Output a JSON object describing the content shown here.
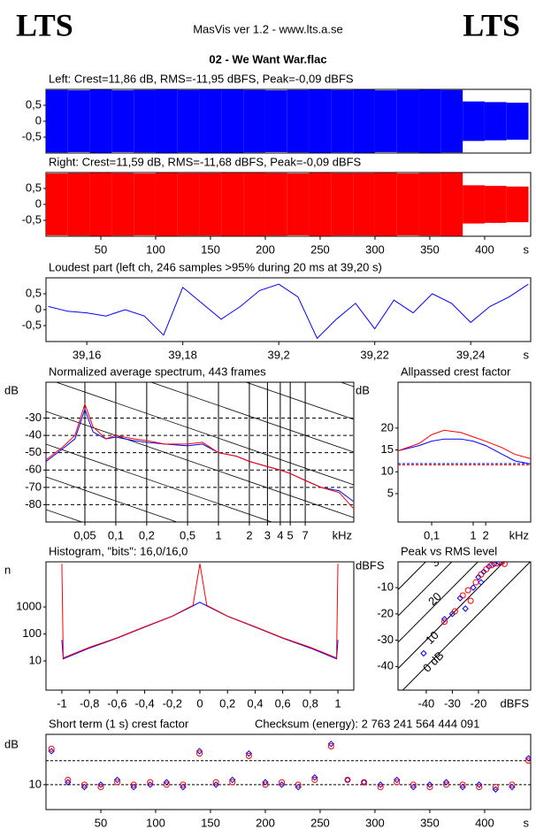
{
  "header": {
    "left_logo": "LTS",
    "app": "MasVis ver 1.2 - www.lts.a.se",
    "right_logo": "LTS",
    "file": "02 - We Want War.flac"
  },
  "chart_data": [
    {
      "type": "envelope",
      "title": "Left: Crest=11,86 dB, RMS=-11,95 dBFS, Peak=-0,09 dBFS",
      "x": [
        10,
        30,
        50,
        70,
        90,
        110,
        130,
        150,
        170,
        190,
        210,
        230,
        250,
        270,
        290,
        310,
        330,
        350,
        370,
        390,
        410,
        430
      ],
      "series": [
        {
          "color": "#0000ff",
          "values": [
            0.98,
            0.97,
            0.99,
            0.97,
            0.98,
            0.99,
            0.98,
            0.99,
            0.99,
            0.98,
            0.97,
            0.98,
            0.99,
            0.98,
            0.99,
            0.97,
            0.98,
            0.99,
            0.98,
            0.62,
            0.6,
            0.58
          ]
        }
      ],
      "xlim": [
        0,
        442
      ],
      "ylim": [
        -1,
        1
      ],
      "yticks": [
        {
          "value": 0.5,
          "label": "0,5"
        },
        0,
        {
          "value": -0.5,
          "label": "-0,5"
        }
      ]
    },
    {
      "type": "envelope",
      "title": "Right: Crest=11,59 dB, RMS=-11,68 dBFS, Peak=-0,09 dBFS",
      "x": [
        10,
        30,
        50,
        70,
        90,
        110,
        130,
        150,
        170,
        190,
        210,
        230,
        250,
        270,
        290,
        310,
        330,
        350,
        370,
        390,
        410,
        430
      ],
      "series": [
        {
          "color": "#ff0000",
          "values": [
            0.97,
            0.98,
            0.99,
            0.98,
            0.97,
            0.99,
            0.98,
            0.98,
            0.99,
            0.99,
            0.98,
            0.97,
            0.99,
            0.98,
            0.98,
            0.99,
            0.97,
            0.98,
            0.99,
            0.6,
            0.58,
            0.56
          ]
        }
      ],
      "xlim": [
        0,
        442
      ],
      "ylim": [
        -1,
        1
      ],
      "yticks": [
        {
          "value": 0.5,
          "label": "0,5"
        },
        0,
        {
          "value": -0.5,
          "label": "-0,5"
        }
      ],
      "xticks": [
        50,
        100,
        150,
        200,
        250,
        300,
        350,
        400
      ],
      "xlabel": "s"
    },
    {
      "type": "line",
      "title": "Loudest part (left  ch, 246 samples >95% during 20 ms at 39,20 s)",
      "x": [
        39.152,
        39.156,
        39.16,
        39.164,
        39.168,
        39.172,
        39.176,
        39.18,
        39.184,
        39.188,
        39.192,
        39.196,
        39.2,
        39.204,
        39.208,
        39.212,
        39.216,
        39.22,
        39.224,
        39.228,
        39.232,
        39.236,
        39.24,
        39.244,
        39.248,
        39.252
      ],
      "series": [
        {
          "color": "#0000ff",
          "values": [
            0.1,
            -0.05,
            -0.1,
            -0.2,
            0.0,
            -0.2,
            -0.8,
            0.7,
            0.2,
            -0.3,
            0.1,
            0.6,
            0.8,
            0.4,
            -0.9,
            -0.3,
            0.2,
            -0.6,
            0.3,
            -0.1,
            0.5,
            0.2,
            -0.4,
            0.1,
            0.4,
            0.8
          ]
        }
      ],
      "xlim": [
        39.1515,
        39.2525
      ],
      "ylim": [
        -1,
        1
      ],
      "yticks": [
        {
          "value": 0.5,
          "label": "0,5"
        },
        0,
        {
          "value": -0.5,
          "label": "-0,5"
        }
      ],
      "xticks": [
        {
          "value": 39.16,
          "label": "39,16"
        },
        {
          "value": 39.18,
          "label": "39,18"
        },
        {
          "value": 39.2,
          "label": "39,2"
        },
        {
          "value": 39.22,
          "label": "39,22"
        },
        {
          "value": 39.24,
          "label": "39,24"
        }
      ],
      "xlabel": "s"
    },
    {
      "type": "line",
      "title": "Normalized average spectrum, 443 frames",
      "ylabel": "dB",
      "xlabel": "kHz",
      "xlog": true,
      "grid": true,
      "x": [
        0.021,
        0.03,
        0.04,
        0.05,
        0.06,
        0.08,
        0.1,
        0.15,
        0.2,
        0.3,
        0.5,
        0.7,
        1,
        1.5,
        2,
        3,
        4,
        5,
        7,
        10,
        15,
        20.5
      ],
      "series": [
        {
          "color": "#0000ff",
          "values": [
            -55,
            -48,
            -42,
            -25,
            -38,
            -42,
            -41,
            -43,
            -44,
            -45,
            -46,
            -45,
            -50,
            -52,
            -55,
            -58,
            -60,
            -62,
            -66,
            -70,
            -72,
            -78
          ]
        },
        {
          "color": "#ff0000",
          "values": [
            -54,
            -47,
            -40,
            -22,
            -35,
            -42,
            -40,
            -42,
            -43,
            -45,
            -45,
            -44,
            -50,
            -52,
            -55,
            -58,
            -60,
            -62,
            -66,
            -70,
            -73,
            -82
          ]
        }
      ],
      "xlim": [
        0.0209,
        20.8
      ],
      "ylim": [
        -90,
        -9.3
      ],
      "yticks": [
        -30,
        -40,
        -50,
        -60,
        -70,
        -80
      ],
      "xticks": [
        {
          "value": 0.05,
          "label": "0,05"
        },
        {
          "value": 0.1,
          "label": "0,1"
        },
        {
          "value": 0.2,
          "label": "0,2"
        },
        {
          "value": 0.5,
          "label": "0,5"
        },
        1,
        2,
        3,
        4,
        5,
        7
      ]
    },
    {
      "type": "line",
      "title": "Allpassed crest factor",
      "ylabel": "dB",
      "xlabel": "kHz",
      "xlog": true,
      "x": [
        0.0155,
        0.05,
        0.1,
        0.2,
        0.5,
        1,
        2,
        5,
        10,
        24
      ],
      "series": [
        {
          "color": "#0000ff",
          "values": [
            14.8,
            16,
            17,
            17.5,
            17.5,
            17,
            16,
            14,
            12.5,
            11.8
          ]
        },
        {
          "color": "#ff0000",
          "values": [
            14.8,
            16.5,
            18.5,
            19.5,
            19,
            18,
            17,
            15.5,
            14,
            13
          ]
        }
      ],
      "hlines": [
        11.86,
        11.59
      ],
      "hline_colors": [
        "#0000ff",
        "#ff0000"
      ],
      "xlim": [
        0.0155,
        24.2
      ],
      "ylim": [
        -1.5,
        30.5
      ],
      "yticks": [
        20,
        15,
        10,
        5
      ],
      "xticks": [
        {
          "value": 0.1,
          "label": "0,1"
        },
        1,
        2
      ]
    },
    {
      "type": "line",
      "title": "Histogram, \"bits\": 16,0/16,0",
      "ylabel": "n",
      "ylog": true,
      "x": [
        -1,
        -0.99,
        -0.8,
        -0.6,
        -0.4,
        -0.2,
        -0.05,
        0,
        0.05,
        0.2,
        0.4,
        0.6,
        0.8,
        0.99,
        1
      ],
      "series": [
        {
          "color": "#0000ff",
          "values": [
            60,
            12,
            30,
            70,
            180,
            450,
            1100,
            1500,
            1100,
            450,
            180,
            70,
            30,
            12,
            60
          ]
        },
        {
          "color": "#ff0000",
          "values": [
            40000,
            13,
            32,
            72,
            185,
            460,
            1150,
            40000,
            1150,
            460,
            185,
            72,
            32,
            13,
            40000
          ]
        }
      ],
      "xlim": [
        -1.115,
        1.115
      ],
      "ylim": [
        0.83,
        47000
      ],
      "yticks": [
        1000,
        100,
        10
      ],
      "xticks": [
        -1,
        {
          "value": -0.8,
          "label": "-0,8"
        },
        {
          "value": -0.6,
          "label": "-0,6"
        },
        {
          "value": -0.4,
          "label": "-0,4"
        },
        {
          "value": -0.2,
          "label": "-0,2"
        },
        0,
        {
          "value": 0.2,
          "label": "0,2"
        },
        {
          "value": 0.4,
          "label": "0,4"
        },
        {
          "value": 0.6,
          "label": "0,6"
        },
        {
          "value": 0.8,
          "label": "0,8"
        },
        1
      ]
    },
    {
      "type": "scatter",
      "title": "Peak vs RMS level",
      "ylabel": "dBFS",
      "xlabel": "dBFS",
      "series": [
        {
          "color": "#0000ff",
          "x": [
            -41,
            -33,
            -30,
            -27,
            -22,
            -20,
            -18,
            -16,
            -14,
            -12,
            -19,
            -25
          ],
          "values": [
            -35,
            -22,
            -20,
            -14,
            -10,
            -6,
            -4,
            -2,
            -1,
            -0.5,
            -8,
            -18
          ]
        },
        {
          "color": "#ff0000",
          "x": [
            -33,
            -29,
            -26,
            -24,
            -21,
            -19,
            -17,
            -15,
            -13,
            -11,
            -23,
            -10
          ],
          "values": [
            -23,
            -19,
            -13,
            -11,
            -8,
            -5,
            -3,
            -1.5,
            -0.8,
            -0.3,
            -15,
            -1
          ]
        }
      ],
      "crest_lines": [
        {
          "value": 0,
          "label": "0 dB"
        },
        10,
        20,
        30,
        40
      ],
      "xlim": [
        -50.8,
        0
      ],
      "ylim": [
        -49,
        -0.2
      ],
      "yticks": [
        -10,
        -20,
        -30,
        -40
      ],
      "xticks": [
        -40,
        -30,
        -20
      ]
    },
    {
      "type": "scatter",
      "title": "Short term (1 s) crest factor",
      "annotation": "Checksum (energy):  2 763 241 564 444 091",
      "ylabel": "dB",
      "xlabel": "s",
      "series": [
        {
          "color": "#0000ff",
          "x": [
            5,
            20,
            35,
            50,
            65,
            80,
            95,
            110,
            125,
            140,
            155,
            170,
            185,
            200,
            215,
            230,
            245,
            260,
            275,
            290,
            305,
            320,
            335,
            350,
            365,
            380,
            395,
            410,
            425,
            440
          ],
          "values": [
            24,
            11,
            9,
            10,
            12,
            9,
            10,
            11,
            9,
            24,
            10,
            12,
            23,
            11,
            10,
            9,
            13,
            27,
            12,
            11,
            10,
            12,
            9,
            10,
            11,
            9,
            10,
            8,
            9,
            21
          ]
        },
        {
          "color": "#ff0000",
          "x": [
            5,
            20,
            35,
            50,
            65,
            80,
            95,
            110,
            125,
            140,
            155,
            170,
            185,
            200,
            215,
            230,
            245,
            260,
            275,
            290,
            305,
            320,
            335,
            350,
            365,
            380,
            395,
            410,
            425,
            440
          ],
          "values": [
            25,
            12,
            10,
            9,
            11,
            10,
            11,
            10,
            10,
            23,
            11,
            11,
            22,
            10,
            11,
            10,
            12,
            26,
            12,
            11,
            9,
            11,
            10,
            9,
            10,
            10,
            9,
            9,
            10,
            20
          ]
        }
      ],
      "hlines": [
        10,
        20
      ],
      "hline_colors": [
        "#000000",
        "#000000"
      ],
      "xlim": [
        0,
        442
      ],
      "ylim": [
        -0.4,
        31
      ],
      "yticks": [
        10
      ],
      "xticks": [
        50,
        100,
        150,
        200,
        250,
        300,
        350,
        400
      ]
    }
  ]
}
